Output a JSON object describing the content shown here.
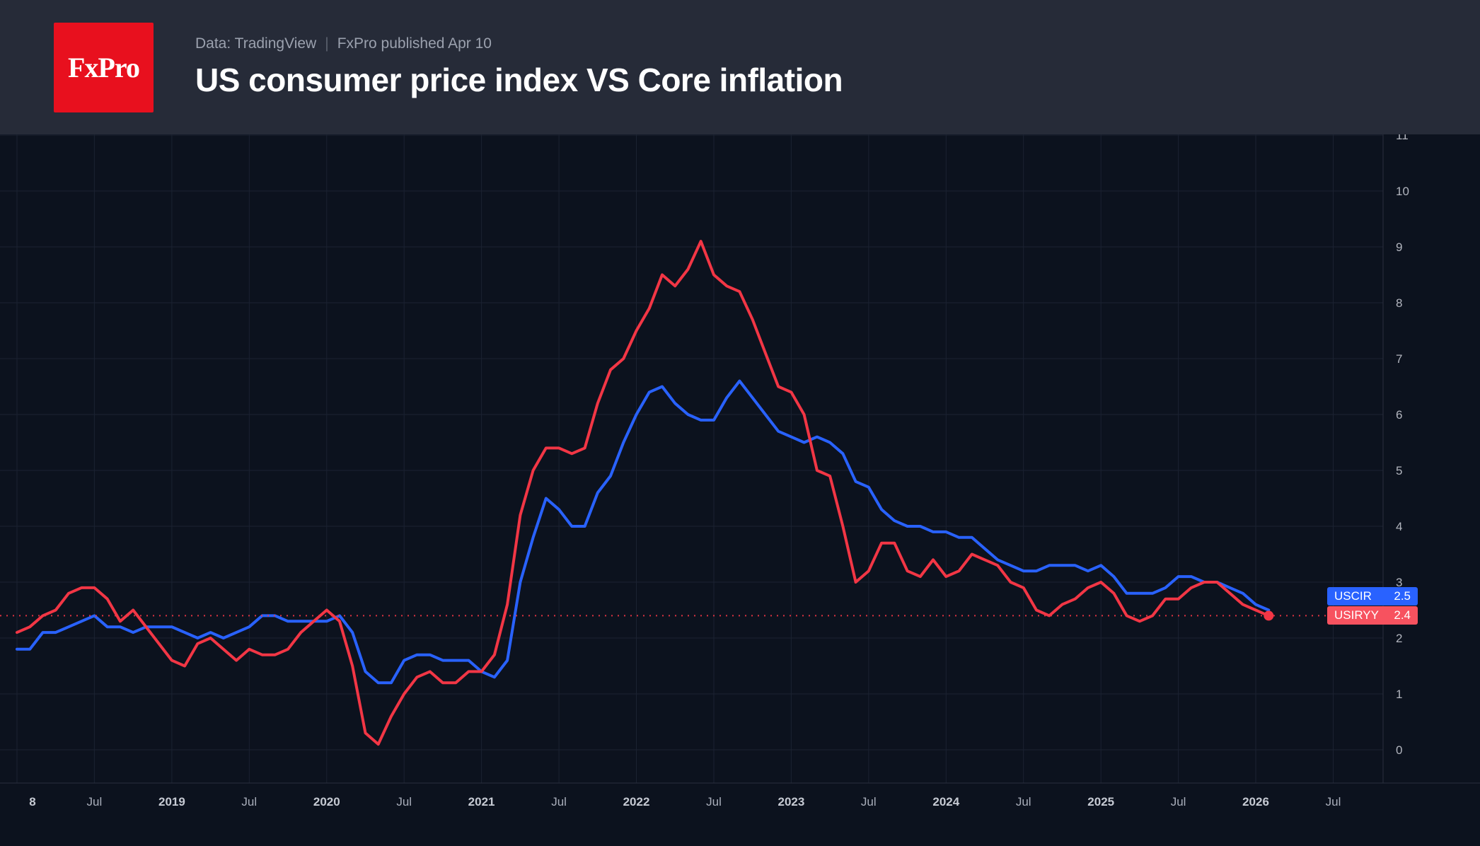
{
  "header": {
    "logo_text": "FxPro",
    "source": {
      "data_source": "Data: TradingView",
      "separator": "|",
      "published": "FxPro published Apr 10"
    },
    "title": "US consumer price index VS Core inflation"
  },
  "badges": [
    {
      "ticker": "USCIR",
      "value": "2.5",
      "color": "#2962ff"
    },
    {
      "ticker": "USIRYY",
      "value": "2.4",
      "color": "#f7525f"
    }
  ],
  "colors": {
    "background": "#0c121e",
    "header_bg": "#262b38",
    "logo_red": "#e8101e",
    "grid": "#1b2231",
    "axis_line": "#2a2f3d",
    "axis_text": "#b2b5be",
    "blue": "#2962ff",
    "red": "#f23645",
    "red_badge": "#f7525f"
  },
  "chart_data": {
    "type": "line",
    "title": "US consumer price index VS Core inflation",
    "x_unit": "month",
    "x_range": [
      "2018-01",
      "2026-02"
    ],
    "ylim": [
      -0.6,
      11.0
    ],
    "grid": true,
    "legend_position": "right-price-labels",
    "y_ticks": [
      0,
      1,
      2,
      3,
      4,
      5,
      6,
      7,
      8,
      9,
      10,
      11
    ],
    "x_tick_labels": [
      {
        "month_index": 0,
        "label": "8",
        "year": true,
        "dx": 22
      },
      {
        "month_index": 6,
        "label": "Jul",
        "year": false
      },
      {
        "month_index": 12,
        "label": "2019",
        "year": true
      },
      {
        "month_index": 18,
        "label": "Jul",
        "year": false
      },
      {
        "month_index": 24,
        "label": "2020",
        "year": true
      },
      {
        "month_index": 30,
        "label": "Jul",
        "year": false
      },
      {
        "month_index": 36,
        "label": "2021",
        "year": true
      },
      {
        "month_index": 42,
        "label": "Jul",
        "year": false
      },
      {
        "month_index": 48,
        "label": "2022",
        "year": true
      },
      {
        "month_index": 54,
        "label": "Jul",
        "year": false
      },
      {
        "month_index": 60,
        "label": "2023",
        "year": true
      },
      {
        "month_index": 66,
        "label": "Jul",
        "year": false
      },
      {
        "month_index": 72,
        "label": "2024",
        "year": true
      },
      {
        "month_index": 78,
        "label": "Jul",
        "year": false
      },
      {
        "month_index": 84,
        "label": "2025",
        "year": true
      },
      {
        "month_index": 90,
        "label": "Jul",
        "year": false
      },
      {
        "month_index": 96,
        "label": "2026",
        "year": true
      },
      {
        "month_index": 102,
        "label": "Jul",
        "year": false
      }
    ],
    "series": [
      {
        "name": "USCIR",
        "color": "#2962ff",
        "last": 2.5,
        "values": [
          1.8,
          1.8,
          2.1,
          2.1,
          2.2,
          2.3,
          2.4,
          2.2,
          2.2,
          2.1,
          2.2,
          2.2,
          2.2,
          2.1,
          2.0,
          2.1,
          2.0,
          2.1,
          2.2,
          2.4,
          2.4,
          2.3,
          2.3,
          2.3,
          2.3,
          2.4,
          2.1,
          1.4,
          1.2,
          1.2,
          1.6,
          1.7,
          1.7,
          1.6,
          1.6,
          1.6,
          1.4,
          1.3,
          1.6,
          3.0,
          3.8,
          4.5,
          4.3,
          4.0,
          4.0,
          4.6,
          4.9,
          5.5,
          6.0,
          6.4,
          6.5,
          6.2,
          6.0,
          5.9,
          5.9,
          6.3,
          6.6,
          6.3,
          6.0,
          5.7,
          5.6,
          5.5,
          5.6,
          5.5,
          5.3,
          4.8,
          4.7,
          4.3,
          4.1,
          4.0,
          4.0,
          3.9,
          3.9,
          3.8,
          3.8,
          3.6,
          3.4,
          3.3,
          3.2,
          3.2,
          3.3,
          3.3,
          3.3,
          3.2,
          3.3,
          3.1,
          2.8,
          2.8,
          2.8,
          2.9,
          3.1,
          3.1,
          3.0,
          3.0,
          2.9,
          2.8,
          2.6,
          2.5
        ]
      },
      {
        "name": "USIRYY",
        "color": "#f23645",
        "last": 2.4,
        "values": [
          2.1,
          2.2,
          2.4,
          2.5,
          2.8,
          2.9,
          2.9,
          2.7,
          2.3,
          2.5,
          2.2,
          1.9,
          1.6,
          1.5,
          1.9,
          2.0,
          1.8,
          1.6,
          1.8,
          1.7,
          1.7,
          1.8,
          2.1,
          2.3,
          2.5,
          2.3,
          1.5,
          0.3,
          0.1,
          0.6,
          1.0,
          1.3,
          1.4,
          1.2,
          1.2,
          1.4,
          1.4,
          1.7,
          2.6,
          4.2,
          5.0,
          5.4,
          5.4,
          5.3,
          5.4,
          6.2,
          6.8,
          7.0,
          7.5,
          7.9,
          8.5,
          8.3,
          8.6,
          9.1,
          8.5,
          8.3,
          8.2,
          7.7,
          7.1,
          6.5,
          6.4,
          6.0,
          5.0,
          4.9,
          4.0,
          3.0,
          3.2,
          3.7,
          3.7,
          3.2,
          3.1,
          3.4,
          3.1,
          3.2,
          3.5,
          3.4,
          3.3,
          3.0,
          2.9,
          2.5,
          2.4,
          2.6,
          2.7,
          2.9,
          3.0,
          2.8,
          2.4,
          2.3,
          2.4,
          2.7,
          2.7,
          2.9,
          3.0,
          3.0,
          2.8,
          2.6,
          2.5,
          2.4
        ]
      }
    ],
    "price_line": {
      "series": "USIRYY",
      "value": 2.4,
      "style": "dotted"
    }
  }
}
